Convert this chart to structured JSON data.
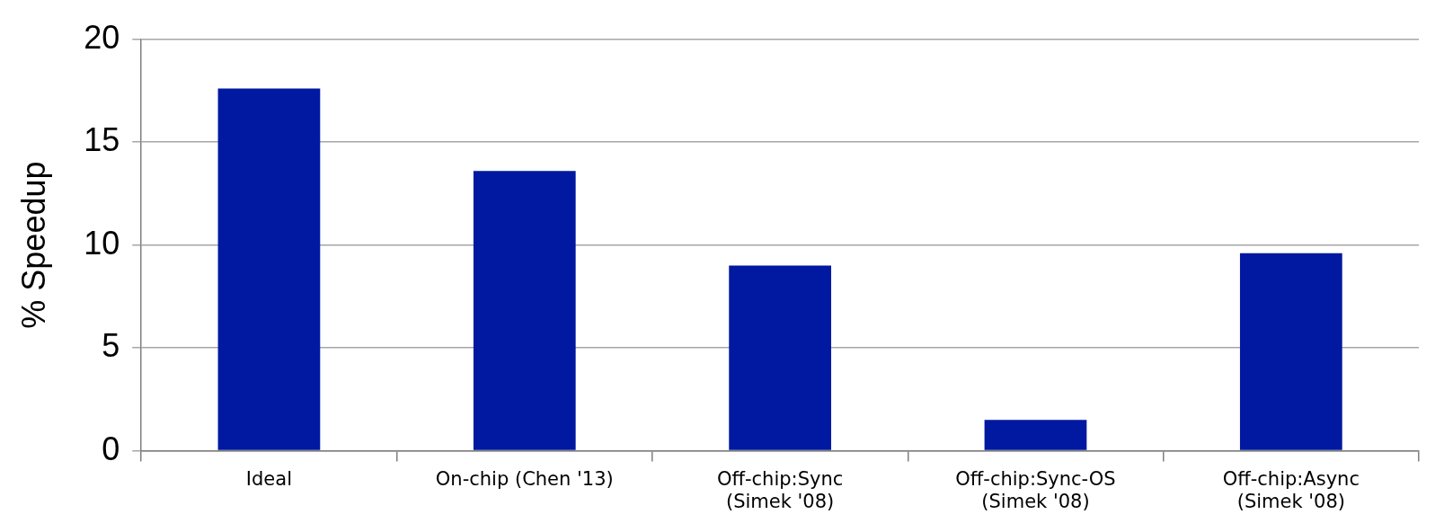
{
  "chart_data": {
    "type": "bar",
    "ylabel": "% Speedup",
    "categories": [
      "Ideal",
      "On-chip (Chen '13)",
      "Off-chip:Sync (Simek '08)",
      "Off-chip:Sync-OS (Simek '08)",
      "Off-chip:Async (Simek '08)"
    ],
    "values": [
      17.6,
      13.6,
      9.0,
      1.5,
      9.6
    ],
    "color": "#0019a0",
    "ylim": [
      0,
      20
    ],
    "yticks": [
      0,
      5,
      10,
      15,
      20
    ],
    "grid": "y",
    "legend": false
  }
}
